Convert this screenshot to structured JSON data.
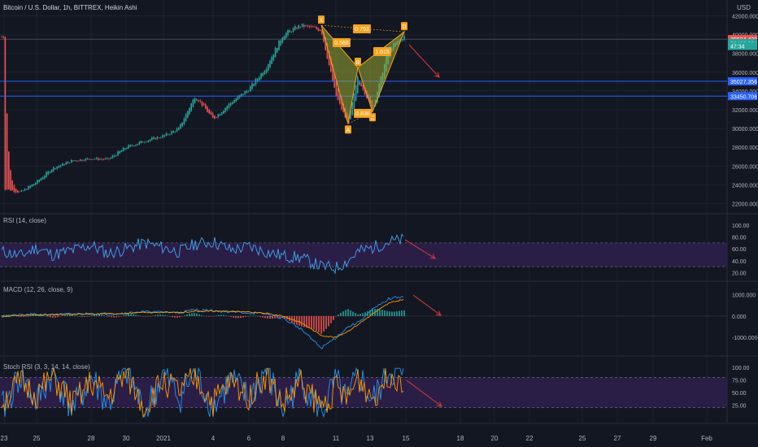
{
  "header": {
    "symbol_title": "Bitcoin / U.S. Dollar, 1h, BITTREX, Heikin Ashi",
    "currency": "USD"
  },
  "colors": {
    "background": "#131722",
    "grid": "#1e222d",
    "candle_up": "#26a69a",
    "candle_down": "#ef5350",
    "pattern_fill": "#9ba935",
    "pattern_label": "#f7a21b",
    "support_line": "#2962ff",
    "arrow": "#e53935",
    "osc_band": "#2d1f4a",
    "rsi_line": "#42a5f5",
    "macd_line": "#2196f3",
    "signal_line": "#ff9800",
    "stoch_k": "#2196f3",
    "stoch_d": "#ff9800"
  },
  "chart_data": [
    {
      "type": "candlestick",
      "title": "Bitcoin / U.S. Dollar, 1h, BITTREX, Heikin Ashi",
      "yaxis_ticks": [
        "42000.000",
        "40000.000",
        "38000.000",
        "36000.000",
        "34000.000",
        "32000.000",
        "30000.000",
        "28000.000",
        "26000.000",
        "24000.000",
        "22000.000"
      ],
      "ylim": [
        21000,
        43000
      ],
      "xaxis_ticks": [
        "23",
        "25",
        "28",
        "30",
        "2021",
        "4",
        "6",
        "8",
        "11",
        "13",
        "15",
        "18",
        "20",
        "22",
        "25",
        "27",
        "29",
        "Feb"
      ],
      "price_path": [
        [
          "Dec 23",
          23600
        ],
        [
          "Dec 24",
          23200
        ],
        [
          "Dec 25",
          24300
        ],
        [
          "Dec 26",
          25800
        ],
        [
          "Dec 27",
          26600
        ],
        [
          "Dec 28",
          26800
        ],
        [
          "Dec 29",
          26700
        ],
        [
          "Dec 30",
          28000
        ],
        [
          "Dec 31",
          28700
        ],
        [
          "Jan 1",
          29200
        ],
        [
          "Jan 2",
          30000
        ],
        [
          "Jan 3",
          33500
        ],
        [
          "Jan 4",
          31000
        ],
        [
          "Jan 5",
          32800
        ],
        [
          "Jan 6",
          34200
        ],
        [
          "Jan 7",
          36500
        ],
        [
          "Jan 8",
          40000
        ],
        [
          "Jan 9",
          41000
        ],
        [
          "Jan 10",
          40500
        ],
        [
          "Jan 11",
          33500
        ],
        [
          "Jan 11.5",
          30500
        ],
        [
          "Jan 12",
          35500
        ],
        [
          "Jan 13",
          32000
        ],
        [
          "Jan 14",
          38500
        ],
        [
          "Jan 15",
          39800
        ]
      ],
      "price_labels": [
        {
          "text": "39524.420",
          "color": "#ef5350"
        },
        {
          "text": "39463.334",
          "color": "#26a69a"
        },
        {
          "text": "47:34",
          "color": "#26a69a"
        },
        {
          "text": "35027.356",
          "color": "#2962ff"
        },
        {
          "text": "33450.706",
          "color": "#2962ff"
        }
      ],
      "horizontal_lines": [
        35027.356,
        33450.706
      ],
      "harmonic_pattern": {
        "points": [
          {
            "label": "X",
            "date": "Jan 10",
            "price": 41000
          },
          {
            "label": "A",
            "date": "Jan 11.5",
            "price": 30500
          },
          {
            "label": "B",
            "date": "Jan 12",
            "price": 36500
          },
          {
            "label": "C",
            "date": "Jan 13",
            "price": 31800
          },
          {
            "label": "D",
            "date": "Jan 15",
            "price": 40300
          }
        ],
        "ratios": [
          "0.568",
          "0.793",
          "0.838",
          "1.615"
        ]
      }
    },
    {
      "type": "line",
      "title": "RSI (14, close)",
      "yaxis_ticks": [
        "100.00",
        "80.00",
        "60.00",
        "40.00",
        "20.00"
      ],
      "ylim": [
        15,
        100
      ],
      "bands": [
        30,
        70
      ],
      "series": [
        {
          "values": [
            55,
            48,
            62,
            50,
            58,
            66,
            52,
            60,
            70,
            62,
            55,
            68,
            72,
            58,
            64,
            55,
            48,
            45,
            30,
            28,
            40,
            55,
            62,
            72,
            75
          ]
        }
      ]
    },
    {
      "type": "line",
      "title": "MACD (12, 26, close, 9)",
      "yaxis_ticks": [
        "1000.000",
        "0.000",
        "-1000.000"
      ],
      "ylim": [
        -1600,
        1100
      ],
      "series": [
        {
          "values": [
            0,
            50,
            80,
            60,
            90,
            120,
            100,
            150,
            200,
            180,
            160,
            300,
            250,
            200,
            150,
            100,
            -100,
            -600,
            -1500,
            -1000,
            -500,
            -300,
            300,
            800,
            950
          ]
        },
        {
          "values": [
            0,
            30,
            60,
            70,
            80,
            100,
            110,
            130,
            170,
            180,
            170,
            230,
            240,
            220,
            180,
            130,
            0,
            -300,
            -900,
            -1000,
            -700,
            -400,
            100,
            600,
            800
          ]
        }
      ]
    },
    {
      "type": "line",
      "title": "Stoch RSI (3, 3, 14, 14, close)",
      "yaxis_ticks": [
        "100.00",
        "75.00",
        "50.00",
        "25.00"
      ],
      "ylim": [
        0,
        100
      ],
      "bands": [
        20,
        80
      ],
      "series": [
        {
          "values": [
            20,
            85,
            30,
            90,
            15,
            80,
            25,
            95,
            10,
            85,
            40,
            90,
            20,
            75,
            35,
            95,
            15,
            80,
            10,
            70,
            25,
            90,
            30,
            95,
            80
          ]
        },
        {
          "values": [
            35,
            70,
            45,
            80,
            25,
            70,
            40,
            85,
            20,
            75,
            50,
            80,
            30,
            70,
            45,
            85,
            25,
            70,
            20,
            60,
            35,
            80,
            40,
            88,
            75
          ]
        }
      ]
    }
  ]
}
